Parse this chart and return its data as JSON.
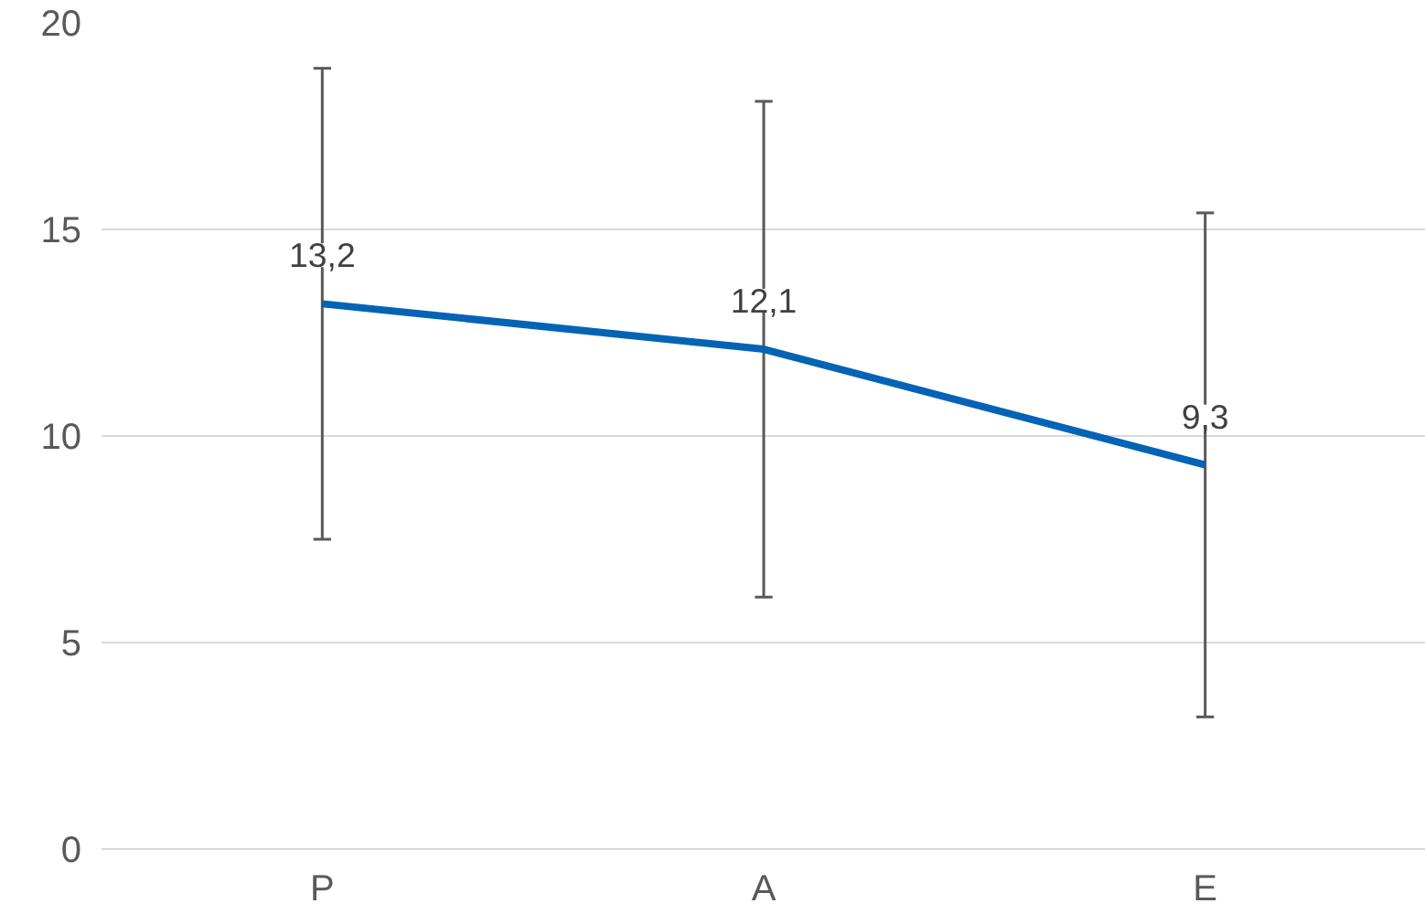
{
  "chart_data": {
    "type": "line",
    "categories": [
      "P",
      "A",
      "E"
    ],
    "series": [
      {
        "color": "#0563b5",
        "values": [
          13.2,
          12.1,
          9.3
        ],
        "errors": [
          5.7,
          6.0,
          6.1
        ],
        "value_labels": [
          "13,2",
          "12,1",
          "9,3"
        ]
      }
    ],
    "ylim": [
      0,
      20
    ],
    "yticks": [
      0,
      5,
      10,
      15,
      20
    ],
    "grid": "y",
    "marker": "none",
    "line_style": "solid"
  }
}
